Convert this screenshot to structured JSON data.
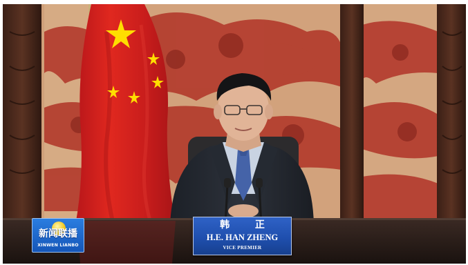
{
  "nameplate": {
    "name_zh": "韩 正",
    "name_en": "H.E. HAN ZHENG",
    "title": "VICE PREMIER"
  },
  "channel_logo": {
    "name": "新闻联播",
    "subtitle": "XINWEN LIANBO",
    "icon": "globe-icon"
  },
  "colors": {
    "plate_blue": "#1f4fae",
    "flag_red": "#d8231f",
    "flag_star": "#ffde00",
    "wall_mural": "#b23a2c"
  }
}
